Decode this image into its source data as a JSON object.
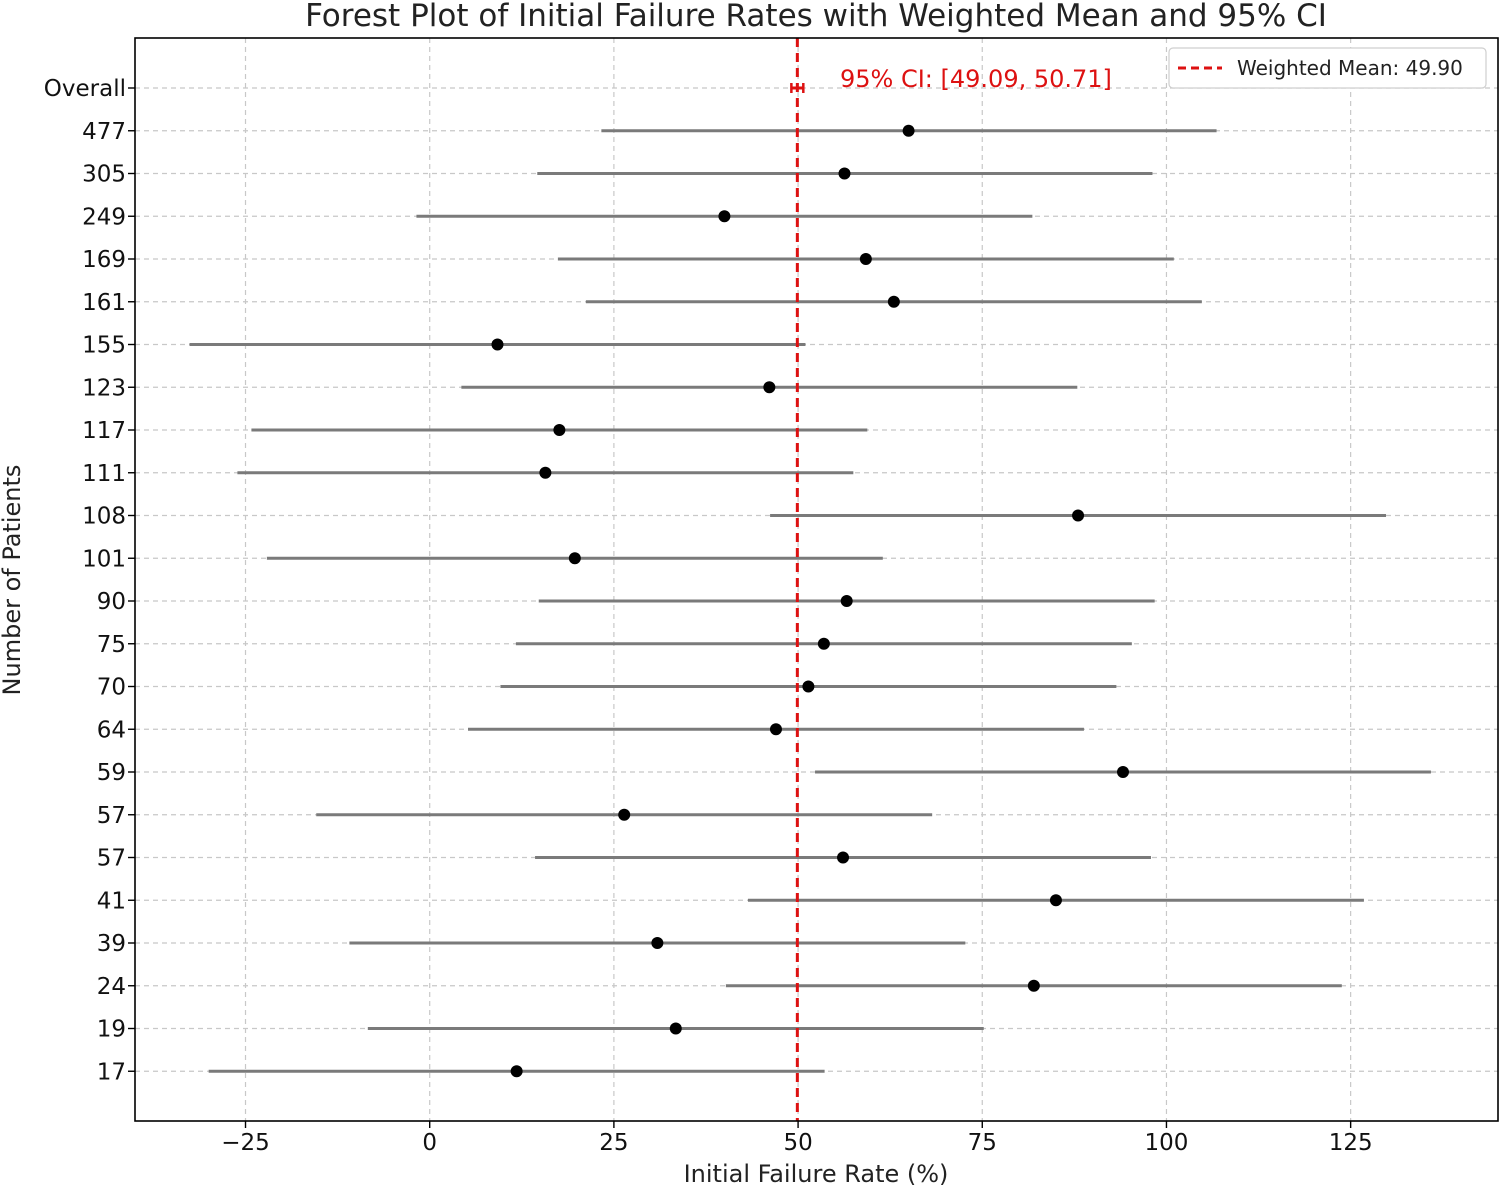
{
  "chart_data": {
    "type": "forest",
    "title": "Forest Plot of Initial Failure Rates with Weighted Mean and 95% CI",
    "xlabel": "Initial Failure Rate (%)",
    "ylabel": "Number of Patients",
    "xlim": [
      -40,
      145
    ],
    "xticks": [
      -25,
      0,
      25,
      50,
      75,
      100,
      125
    ],
    "xtick_labels": [
      "−25",
      "0",
      "25",
      "50",
      "75",
      "100",
      "125"
    ],
    "grid": true,
    "legend": {
      "position": "top-right",
      "label": "Weighted Mean: 49.90"
    },
    "weighted_mean": 49.9,
    "overall_ci": [
      49.09,
      50.71
    ],
    "ci_annotation": "95% CI: [49.09, 50.71]",
    "mean_color": "#dd1111",
    "rows": [
      {
        "label": "Overall",
        "value": 49.9,
        "low": 49.09,
        "high": 50.71,
        "overall": true
      },
      {
        "label": "477",
        "value": 65.0,
        "low": 23.3,
        "high": 106.8
      },
      {
        "label": "305",
        "value": 56.3,
        "low": 14.6,
        "high": 98.1
      },
      {
        "label": "249",
        "value": 40.0,
        "low": -1.8,
        "high": 81.8
      },
      {
        "label": "169",
        "value": 59.2,
        "low": 17.4,
        "high": 101.0
      },
      {
        "label": "161",
        "value": 63.0,
        "low": 21.2,
        "high": 104.8
      },
      {
        "label": "155",
        "value": 9.2,
        "low": -32.6,
        "high": 51.0
      },
      {
        "label": "123",
        "value": 46.1,
        "low": 4.3,
        "high": 87.9
      },
      {
        "label": "117",
        "value": 17.6,
        "low": -24.2,
        "high": 59.4
      },
      {
        "label": "111",
        "value": 15.7,
        "low": -26.1,
        "high": 57.5
      },
      {
        "label": "108",
        "value": 88.0,
        "low": 46.2,
        "high": 129.8
      },
      {
        "label": "101",
        "value": 19.7,
        "low": -22.1,
        "high": 61.5
      },
      {
        "label": "90",
        "value": 56.6,
        "low": 14.8,
        "high": 98.4
      },
      {
        "label": "75",
        "value": 53.5,
        "low": 11.7,
        "high": 95.3
      },
      {
        "label": "70",
        "value": 51.4,
        "low": 9.6,
        "high": 93.2
      },
      {
        "label": "64",
        "value": 47.0,
        "low": 5.2,
        "high": 88.8
      },
      {
        "label": "59",
        "value": 94.1,
        "low": 52.3,
        "high": 135.9
      },
      {
        "label": "57",
        "value": 26.4,
        "low": -15.4,
        "high": 68.2
      },
      {
        "label": "57",
        "value": 56.1,
        "low": 14.3,
        "high": 97.9
      },
      {
        "label": "41",
        "value": 85.0,
        "low": 43.2,
        "high": 126.8
      },
      {
        "label": "39",
        "value": 30.9,
        "low": -10.9,
        "high": 72.7
      },
      {
        "label": "24",
        "value": 82.0,
        "low": 40.2,
        "high": 123.8
      },
      {
        "label": "19",
        "value": 33.4,
        "low": -8.4,
        "high": 75.2
      },
      {
        "label": "17",
        "value": 11.8,
        "low": -30.0,
        "high": 53.6
      }
    ]
  }
}
